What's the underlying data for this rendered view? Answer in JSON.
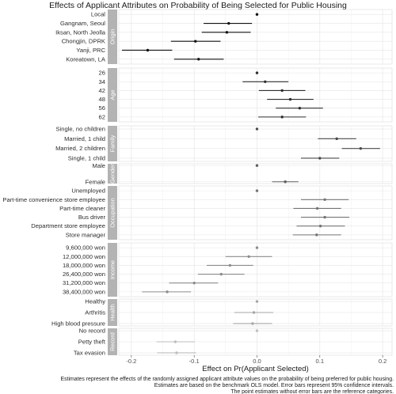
{
  "chart_data": {
    "type": "scatter",
    "title": "Effects of Applicant Attributes on Probability of Being Selected for Public Housing",
    "xlabel": "Effect on Pr(Applicant Selected)",
    "xlim": [
      -0.22,
      0.215
    ],
    "xticks": [
      -0.2,
      -0.1,
      0.0,
      0.1,
      0.2
    ],
    "xtick_labels": [
      "-0.2",
      "-0.1",
      "0.0",
      "0.1",
      "0.2"
    ],
    "grid": true,
    "facets": [
      {
        "name": "Origin",
        "color": "#111111",
        "levels": [
          {
            "label": "Local",
            "est": 0.0
          },
          {
            "label": "Gangnam, Seoul",
            "est": -0.045,
            "lo": -0.085,
            "hi": -0.008
          },
          {
            "label": "Iksan, North Jeolla",
            "est": -0.048,
            "lo": -0.088,
            "hi": -0.01
          },
          {
            "label": "Chongjin, DPRK",
            "est": -0.098,
            "lo": -0.137,
            "hi": -0.058
          },
          {
            "label": "Yanji, PRC",
            "est": -0.174,
            "lo": -0.215,
            "hi": -0.135
          },
          {
            "label": "Koreatown, LA",
            "est": -0.093,
            "lo": -0.132,
            "hi": -0.053
          }
        ]
      },
      {
        "name": "Age",
        "color": "#2e2e2e",
        "levels": [
          {
            "label": "26",
            "est": 0.0
          },
          {
            "label": "34",
            "est": 0.013,
            "lo": -0.023,
            "hi": 0.05
          },
          {
            "label": "42",
            "est": 0.04,
            "lo": 0.003,
            "hi": 0.077
          },
          {
            "label": "48",
            "est": 0.053,
            "lo": 0.016,
            "hi": 0.09
          },
          {
            "label": "56",
            "est": 0.068,
            "lo": 0.03,
            "hi": 0.105
          },
          {
            "label": "62",
            "est": 0.04,
            "lo": 0.002,
            "hi": 0.078
          }
        ]
      },
      {
        "name": "Family",
        "color": "#4a4a4a",
        "levels": [
          {
            "label": "Single, no children",
            "est": 0.0
          },
          {
            "label": "Married, 1 child",
            "est": 0.127,
            "lo": 0.097,
            "hi": 0.158
          },
          {
            "label": "Married, 2 children",
            "est": 0.165,
            "lo": 0.135,
            "hi": 0.196
          },
          {
            "label": "Single, 1 child",
            "est": 0.1,
            "lo": 0.07,
            "hi": 0.131
          }
        ]
      },
      {
        "name": "Gender",
        "color": "#5e5e5e",
        "levels": [
          {
            "label": "Male",
            "est": 0.0
          },
          {
            "label": "Female",
            "est": 0.045,
            "lo": 0.024,
            "hi": 0.066
          }
        ]
      },
      {
        "name": "Occupation",
        "color": "#747474",
        "levels": [
          {
            "label": "Unemployed",
            "est": 0.0
          },
          {
            "label": "Part-time convenience store employee",
            "est": 0.108,
            "lo": 0.07,
            "hi": 0.146
          },
          {
            "label": "Part-time cleaner",
            "est": 0.096,
            "lo": 0.058,
            "hi": 0.134
          },
          {
            "label": "Bus driver",
            "est": 0.108,
            "lo": 0.07,
            "hi": 0.147
          },
          {
            "label": "Department store employee",
            "est": 0.101,
            "lo": 0.063,
            "hi": 0.14
          },
          {
            "label": "Store manager",
            "est": 0.095,
            "lo": 0.057,
            "hi": 0.134
          }
        ]
      },
      {
        "name": "Income",
        "color": "#8c8c8c",
        "levels": [
          {
            "label": "9,600,000 won",
            "est": 0.0
          },
          {
            "label": "12,000,000 won",
            "est": -0.013,
            "lo": -0.05,
            "hi": 0.024
          },
          {
            "label": "18,000,000 won",
            "est": -0.043,
            "lo": -0.08,
            "hi": -0.006
          },
          {
            "label": "26,400,000 won",
            "est": -0.057,
            "lo": -0.094,
            "hi": -0.02
          },
          {
            "label": "31,200,000 won",
            "est": -0.1,
            "lo": -0.14,
            "hi": -0.062
          },
          {
            "label": "38,400,000 won",
            "est": -0.143,
            "lo": -0.183,
            "hi": -0.105
          }
        ]
      },
      {
        "name": "Health",
        "color": "#a6a6a6",
        "levels": [
          {
            "label": "Healthy",
            "est": 0.0
          },
          {
            "label": "Arthritis",
            "est": -0.005,
            "lo": -0.036,
            "hi": 0.026
          },
          {
            "label": "High blood pressure",
            "est": -0.007,
            "lo": -0.038,
            "hi": 0.024
          }
        ]
      },
      {
        "name": "Record",
        "color": "#bdbdbd",
        "levels": [
          {
            "label": "No record",
            "est": 0.0
          },
          {
            "label": "Petty theft",
            "est": -0.13,
            "lo": -0.16,
            "hi": -0.099
          },
          {
            "label": "Tax evasion",
            "est": -0.128,
            "lo": -0.159,
            "hi": -0.097
          }
        ]
      }
    ],
    "caption": [
      "Estimates represent the effects of the randomly assigned applicant attribute values on the probability of being preferred for public housing.",
      "Estimates are based on the benchmark OLS model. Error bars represent 95% confidence intervals.",
      "The point estimates without error bars are the reference categories."
    ]
  }
}
